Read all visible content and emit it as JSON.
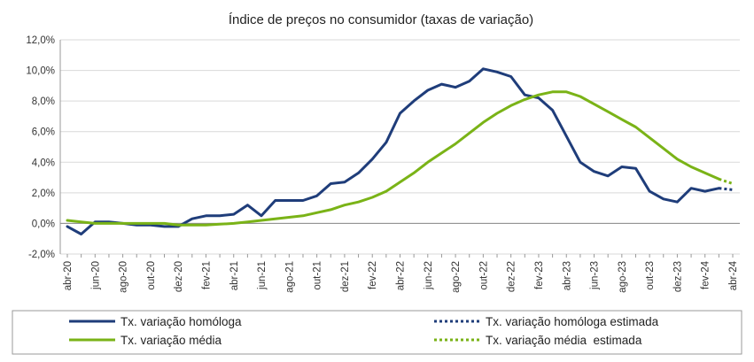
{
  "chart_data": {
    "type": "line",
    "title": "Índice de preços no consumidor  (taxas  de variação)",
    "xlabel": "",
    "ylabel": "",
    "ylim": [
      -2,
      12
    ],
    "y_ticks": [
      "-2,0%",
      "0,0%",
      "2,0%",
      "4,0%",
      "6,0%",
      "8,0%",
      "10,0%",
      "12,0%"
    ],
    "x_tick_labels": [
      "abr-20",
      "jun-20",
      "ago-20",
      "out-20",
      "dez-20",
      "fev-21",
      "abr-21",
      "jun-21",
      "ago-21",
      "out-21",
      "dez-21",
      "fev-22",
      "abr-22",
      "jun-22",
      "ago-22",
      "out-22",
      "dez-22",
      "fev-23",
      "abr-23",
      "jun-23",
      "ago-23",
      "out-23",
      "dez-23",
      "fev-24",
      "abr-24"
    ],
    "x": [
      "abr-20",
      "mai-20",
      "jun-20",
      "jul-20",
      "ago-20",
      "set-20",
      "out-20",
      "nov-20",
      "dez-20",
      "jan-21",
      "fev-21",
      "mar-21",
      "abr-21",
      "mai-21",
      "jun-21",
      "jul-21",
      "ago-21",
      "set-21",
      "out-21",
      "nov-21",
      "dez-21",
      "jan-22",
      "fev-22",
      "mar-22",
      "abr-22",
      "mai-22",
      "jun-22",
      "jul-22",
      "ago-22",
      "set-22",
      "out-22",
      "nov-22",
      "dez-22",
      "jan-23",
      "fev-23",
      "mar-23",
      "abr-23",
      "mai-23",
      "jun-23",
      "jul-23",
      "ago-23",
      "set-23",
      "out-23",
      "nov-23",
      "dez-23",
      "jan-24",
      "fev-24",
      "mar-24",
      "abr-24"
    ],
    "grid": "horizontal",
    "legend_position": "bottom",
    "series": [
      {
        "name": "Tx. variação homóloga",
        "color": "#1f3d7a",
        "style": "solid",
        "values": [
          -0.2,
          -0.7,
          0.1,
          0.1,
          0.0,
          -0.1,
          -0.1,
          -0.2,
          -0.2,
          0.3,
          0.5,
          0.5,
          0.6,
          1.2,
          0.5,
          1.5,
          1.5,
          1.5,
          1.8,
          2.6,
          2.7,
          3.3,
          4.2,
          5.3,
          7.2,
          8.0,
          8.7,
          9.1,
          8.9,
          9.3,
          10.1,
          9.9,
          9.6,
          8.4,
          8.2,
          7.4,
          5.7,
          4.0,
          3.4,
          3.1,
          3.7,
          3.6,
          2.1,
          1.6,
          1.4,
          2.3,
          2.1,
          2.3,
          null
        ]
      },
      {
        "name": "Tx. variação homóloga estimada",
        "color": "#1f3d7a",
        "style": "dotted",
        "values": [
          null,
          null,
          null,
          null,
          null,
          null,
          null,
          null,
          null,
          null,
          null,
          null,
          null,
          null,
          null,
          null,
          null,
          null,
          null,
          null,
          null,
          null,
          null,
          null,
          null,
          null,
          null,
          null,
          null,
          null,
          null,
          null,
          null,
          null,
          null,
          null,
          null,
          null,
          null,
          null,
          null,
          null,
          null,
          null,
          null,
          null,
          null,
          2.3,
          2.2
        ]
      },
      {
        "name": "Tx. variação média",
        "color": "#7ab317",
        "style": "solid",
        "values": [
          0.2,
          0.1,
          0.0,
          0.0,
          0.0,
          0.0,
          0.0,
          0.0,
          -0.1,
          -0.1,
          -0.1,
          -0.05,
          0.0,
          0.1,
          0.2,
          0.3,
          0.4,
          0.5,
          0.7,
          0.9,
          1.2,
          1.4,
          1.7,
          2.1,
          2.7,
          3.3,
          4.0,
          4.6,
          5.2,
          5.9,
          6.6,
          7.2,
          7.7,
          8.1,
          8.4,
          8.6,
          8.6,
          8.3,
          7.8,
          7.3,
          6.8,
          6.3,
          5.6,
          4.9,
          4.2,
          3.7,
          3.3,
          2.9,
          null
        ]
      },
      {
        "name": "Tx. variação média  estimada",
        "color": "#7ab317",
        "style": "dotted",
        "values": [
          null,
          null,
          null,
          null,
          null,
          null,
          null,
          null,
          null,
          null,
          null,
          null,
          null,
          null,
          null,
          null,
          null,
          null,
          null,
          null,
          null,
          null,
          null,
          null,
          null,
          null,
          null,
          null,
          null,
          null,
          null,
          null,
          null,
          null,
          null,
          null,
          null,
          null,
          null,
          null,
          null,
          null,
          null,
          null,
          null,
          null,
          null,
          2.9,
          2.6
        ]
      }
    ]
  }
}
